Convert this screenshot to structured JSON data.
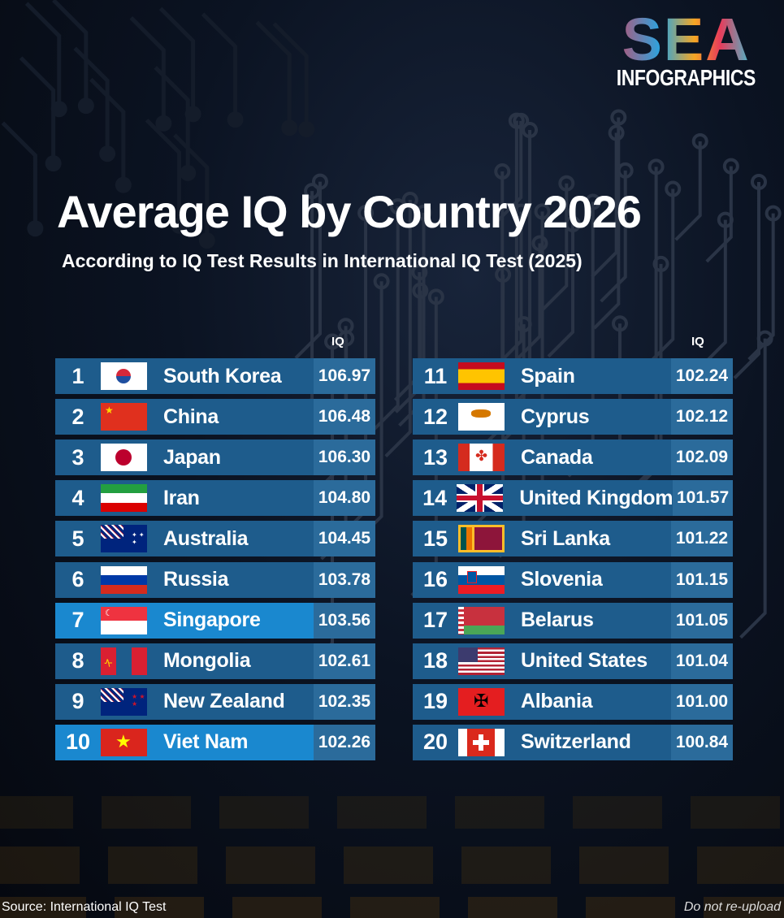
{
  "logo": {
    "top": "SEA",
    "bottom": "INFOGRAPHICS"
  },
  "title": "Average IQ by Country 2026",
  "subtitle": "According to IQ Test Results in International IQ Test (2025)",
  "column_header": "IQ",
  "accent_colors": {
    "row": "#1e5c8c",
    "highlight_row": "#1a88cf",
    "value_cell": "#2b6b9b"
  },
  "rows": [
    {
      "rank": "1",
      "country": "South Korea",
      "iq": "106.97",
      "flag": "kr"
    },
    {
      "rank": "2",
      "country": "China",
      "iq": "106.48",
      "flag": "cn"
    },
    {
      "rank": "3",
      "country": "Japan",
      "iq": "106.30",
      "flag": "jp"
    },
    {
      "rank": "4",
      "country": "Iran",
      "iq": "104.80",
      "flag": "ir"
    },
    {
      "rank": "5",
      "country": "Australia",
      "iq": "104.45",
      "flag": "au"
    },
    {
      "rank": "6",
      "country": "Russia",
      "iq": "103.78",
      "flag": "ru"
    },
    {
      "rank": "7",
      "country": "Singapore",
      "iq": "103.56",
      "flag": "sg",
      "highlight": true
    },
    {
      "rank": "8",
      "country": "Mongolia",
      "iq": "102.61",
      "flag": "mn"
    },
    {
      "rank": "9",
      "country": "New Zealand",
      "iq": "102.35",
      "flag": "nz"
    },
    {
      "rank": "10",
      "country": "Viet Nam",
      "iq": "102.26",
      "flag": "vn",
      "highlight": true
    },
    {
      "rank": "11",
      "country": "Spain",
      "iq": "102.24",
      "flag": "es"
    },
    {
      "rank": "12",
      "country": "Cyprus",
      "iq": "102.12",
      "flag": "cy"
    },
    {
      "rank": "13",
      "country": "Canada",
      "iq": "102.09",
      "flag": "ca"
    },
    {
      "rank": "14",
      "country": "United Kingdom",
      "iq": "101.57",
      "flag": "gb"
    },
    {
      "rank": "15",
      "country": "Sri Lanka",
      "iq": "101.22",
      "flag": "lk"
    },
    {
      "rank": "16",
      "country": "Slovenia",
      "iq": "101.15",
      "flag": "si"
    },
    {
      "rank": "17",
      "country": "Belarus",
      "iq": "101.05",
      "flag": "by"
    },
    {
      "rank": "18",
      "country": "United States",
      "iq": "101.04",
      "flag": "us"
    },
    {
      "rank": "19",
      "country": "Albania",
      "iq": "101.00",
      "flag": "al"
    },
    {
      "rank": "20",
      "country": "Switzerland",
      "iq": "100.84",
      "flag": "ch"
    }
  ],
  "source": "Source: International IQ Test",
  "notice": "Do not re-upload"
}
